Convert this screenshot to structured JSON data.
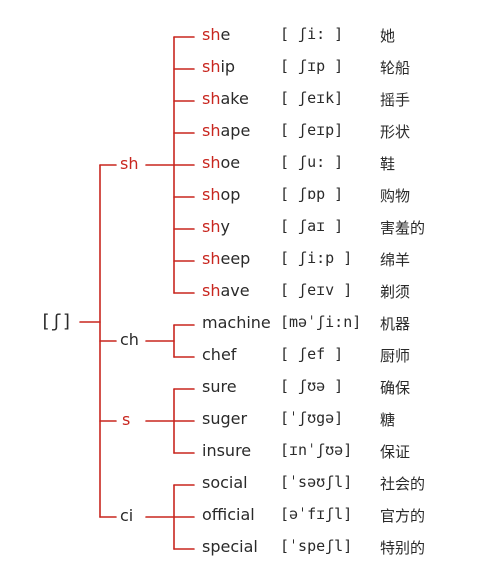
{
  "root": "[ʃ]",
  "groups": [
    {
      "label": "sh",
      "highlight": true,
      "words": [
        {
          "hl": "sh",
          "rest": "e",
          "ipa": "[ ʃi: ]",
          "cn": "她"
        },
        {
          "hl": "sh",
          "rest": "ip",
          "ipa": "[ ʃɪp ]",
          "cn": "轮船"
        },
        {
          "hl": "sh",
          "rest": "ake",
          "ipa": "[ ʃeɪk]",
          "cn": "摇手"
        },
        {
          "hl": "sh",
          "rest": "ape",
          "ipa": "[ ʃeɪp]",
          "cn": "形状"
        },
        {
          "hl": "sh",
          "rest": "oe",
          "ipa": "[ ʃu: ]",
          "cn": "鞋"
        },
        {
          "hl": "sh",
          "rest": "op",
          "ipa": "[ ʃɒp ]",
          "cn": "购物"
        },
        {
          "hl": "sh",
          "rest": "y",
          "ipa": "[ ʃaɪ ]",
          "cn": "害羞的"
        },
        {
          "hl": "sh",
          "rest": "eep",
          "ipa": "[ ʃi:p ]",
          "cn": "绵羊"
        },
        {
          "hl": "sh",
          "rest": "ave",
          "ipa": "[ ʃeɪv ]",
          "cn": "剃须"
        }
      ]
    },
    {
      "label": "ch",
      "highlight": false,
      "words": [
        {
          "hl": "",
          "rest": "machine",
          "ipa": "[məˈʃi:n]",
          "cn": "机器"
        },
        {
          "hl": "",
          "rest": "chef",
          "ipa": "[ ʃef ]",
          "cn": "厨师"
        }
      ]
    },
    {
      "label": "s",
      "highlight": true,
      "words": [
        {
          "hl": "",
          "rest": "sure",
          "ipa": "[ ʃʊə ]",
          "cn": "确保"
        },
        {
          "hl": "",
          "rest": "suger",
          "ipa": "[ˈʃʊgə]",
          "cn": "糖"
        },
        {
          "hl": "",
          "rest": "insure",
          "ipa": "[ɪnˈʃʊə]",
          "cn": "保证"
        }
      ]
    },
    {
      "label": "ci",
      "highlight": false,
      "words": [
        {
          "hl": "",
          "rest": "social",
          "ipa": "[ˈsəʊʃl]",
          "cn": "社会的"
        },
        {
          "hl": "",
          "rest": "official",
          "ipa": "[əˈfɪʃl]",
          "cn": "官方的"
        },
        {
          "hl": "",
          "rest": "special",
          "ipa": "[ˈspeʃl]",
          "cn": "特别的"
        }
      ]
    }
  ],
  "colors": {
    "accent": "#c8261f",
    "ink": "#2a2a2a"
  }
}
